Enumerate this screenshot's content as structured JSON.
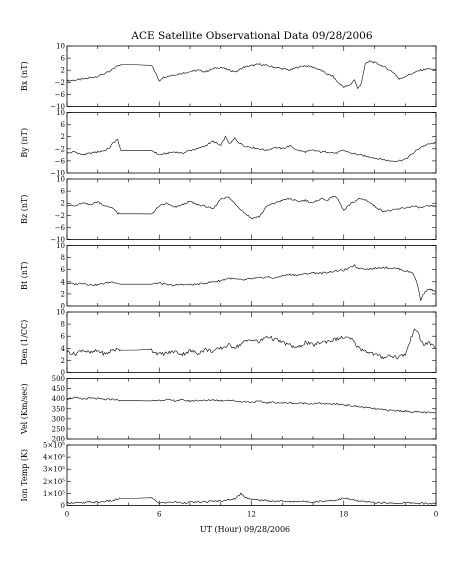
{
  "chart_data": {
    "type": "line",
    "title": "ACE Satellite Observational Data   09/28/2006",
    "xlabel": "UT (Hour)   09/28/2006",
    "x_ticks": [
      "0",
      "6",
      "12",
      "18",
      "0"
    ],
    "xlim": [
      0,
      24
    ],
    "panels": [
      {
        "ylabel": "Bx (nT)",
        "ylim": [
          -10,
          10
        ],
        "y_ticks": [
          {
            "v": 10,
            "t": "10"
          },
          {
            "v": 6,
            "t": "6"
          },
          {
            "v": 2,
            "t": "2"
          },
          {
            "v": -2,
            "t": "−2"
          },
          {
            "v": -6,
            "t": "−6"
          },
          {
            "v": -10,
            "t": "−10"
          }
        ],
        "x": [
          0,
          0.5,
          1,
          1.5,
          2,
          2.5,
          2.8,
          3.0,
          3.3,
          3.5,
          4.5,
          5.5,
          6.0,
          6.2,
          6.5,
          7,
          7.5,
          8,
          8.5,
          9,
          9.5,
          10,
          10.5,
          11,
          11.5,
          12,
          12.5,
          13,
          13.5,
          14,
          14.5,
          15,
          15.5,
          16,
          16.5,
          17,
          17.3,
          17.6,
          18,
          18.4,
          18.7,
          18.9,
          19.1,
          19.4,
          19.7,
          20,
          20.5,
          21,
          21.3,
          21.6,
          22,
          22.5,
          23,
          23.5,
          24
        ],
        "y": [
          -1.5,
          -1.3,
          -1,
          -0.5,
          0,
          1,
          1.5,
          2.5,
          3.5,
          3.8,
          3.8,
          3.8,
          -1.5,
          -0.5,
          0,
          0.5,
          1,
          1.5,
          2,
          1.5,
          2.5,
          3,
          2,
          1.5,
          3,
          3.5,
          4,
          3.5,
          3,
          2.5,
          2,
          3,
          3.5,
          3,
          2,
          0.5,
          0,
          -2,
          -3.5,
          -3,
          -1,
          -4,
          -3,
          4,
          5,
          4.5,
          3.5,
          2,
          1,
          -1,
          0,
          1,
          2,
          2.5,
          2
        ]
      },
      {
        "ylabel": "By (nT)",
        "ylim": [
          -10,
          10
        ],
        "y_ticks": [
          {
            "v": 10,
            "t": "10"
          },
          {
            "v": 6,
            "t": "6"
          },
          {
            "v": 2,
            "t": "2"
          },
          {
            "v": -2,
            "t": "−2"
          },
          {
            "v": -6,
            "t": "−6"
          },
          {
            "v": -10,
            "t": "−10"
          }
        ],
        "x": [
          0,
          0.5,
          1,
          1.5,
          2,
          2.5,
          2.8,
          3.0,
          3.3,
          3.5,
          4.5,
          5.5,
          6.0,
          6.5,
          7,
          7.5,
          8,
          8.5,
          9,
          9.5,
          10,
          10.3,
          10.6,
          10.9,
          11.2,
          11.5,
          12,
          12.5,
          13,
          13.5,
          14,
          14.5,
          15,
          15.5,
          16,
          16.5,
          17,
          17.5,
          18,
          18.5,
          19,
          19.5,
          20,
          20.5,
          21,
          21.5,
          22,
          22.5,
          23,
          23.5,
          24
        ],
        "y": [
          -3.5,
          -3,
          -4,
          -3.5,
          -3,
          -2.5,
          -1.5,
          0,
          1,
          -2.5,
          -2.5,
          -2.5,
          -4,
          -3.5,
          -3,
          -3.5,
          -2.5,
          -2,
          -1,
          0.5,
          -1,
          2,
          -0.5,
          1.5,
          0,
          -1,
          -1.5,
          -2,
          -2.5,
          -1.5,
          -2,
          -1,
          -2.5,
          -3,
          -2.5,
          -3,
          -3,
          -3.5,
          -2.5,
          -3.5,
          -4,
          -4.5,
          -5,
          -5.5,
          -6,
          -6,
          -5.5,
          -3.5,
          -1.5,
          -0.5,
          0
        ]
      },
      {
        "ylabel": "Bz (nT)",
        "ylim": [
          -10,
          10
        ],
        "y_ticks": [
          {
            "v": 10,
            "t": "10"
          },
          {
            "v": 6,
            "t": "6"
          },
          {
            "v": 2,
            "t": "2"
          },
          {
            "v": -2,
            "t": "−2"
          },
          {
            "v": -6,
            "t": "−6"
          },
          {
            "v": -10,
            "t": "−10"
          }
        ],
        "x": [
          0,
          0.5,
          1,
          1.5,
          2,
          2.5,
          3.0,
          3.3,
          3.5,
          4.5,
          5.5,
          6.0,
          6.5,
          7,
          7.5,
          8,
          8.5,
          9,
          9.5,
          10,
          10.5,
          11,
          11.5,
          12,
          12.5,
          13,
          13.5,
          14,
          14.5,
          15,
          15.5,
          16,
          16.5,
          17,
          17.3,
          17.6,
          18,
          18.5,
          19,
          19.5,
          20,
          20.5,
          21,
          21.5,
          22,
          22.5,
          23,
          23.5,
          24
        ],
        "y": [
          1.5,
          1,
          2,
          1.5,
          2.5,
          1,
          0.5,
          -1.5,
          -1.5,
          -1.5,
          -1.5,
          1,
          2,
          0.5,
          1.5,
          2.5,
          1.5,
          1,
          0,
          3.5,
          4,
          1.5,
          -1,
          -3,
          -2.5,
          1,
          2,
          3,
          3.5,
          2.5,
          3,
          2,
          3.5,
          3,
          4.5,
          3.5,
          -0.5,
          2,
          3.5,
          3,
          1,
          -0.5,
          -0.5,
          0,
          0.5,
          1,
          0.5,
          1,
          1
        ]
      },
      {
        "ylabel": "Bt (nT)",
        "ylim": [
          0,
          10
        ],
        "y_ticks": [
          {
            "v": 10,
            "t": "10"
          },
          {
            "v": 8,
            "t": "8"
          },
          {
            "v": 6,
            "t": "6"
          },
          {
            "v": 4,
            "t": "4"
          },
          {
            "v": 2,
            "t": "2"
          },
          {
            "v": 0,
            "t": "0"
          }
        ],
        "x": [
          0,
          0.5,
          1,
          1.5,
          2,
          2.5,
          3.0,
          3.5,
          4.5,
          5.5,
          6.0,
          6.5,
          7,
          7.5,
          8,
          8.5,
          9,
          9.5,
          10,
          10.5,
          11,
          11.5,
          12,
          12.5,
          13,
          13.5,
          14,
          14.5,
          15,
          15.5,
          16,
          16.5,
          17,
          17.5,
          18,
          18.4,
          18.7,
          18.9,
          19.2,
          19.5,
          20,
          20.5,
          21,
          21.5,
          22,
          22.5,
          22.8,
          23,
          23.3,
          23.6,
          24
        ],
        "y": [
          3.8,
          3.6,
          3.8,
          3.5,
          3.5,
          3.8,
          4,
          3.6,
          3.6,
          3.6,
          3.8,
          3.5,
          3.4,
          3.6,
          3.5,
          3.6,
          3.8,
          4,
          4.2,
          4.6,
          4.4,
          4.3,
          4.5,
          4.6,
          4.8,
          4.6,
          5,
          5.2,
          5.1,
          5.3,
          5.5,
          5.4,
          5.6,
          5.8,
          5.9,
          6.3,
          6.8,
          6.2,
          6.3,
          6.1,
          6.2,
          6.4,
          6.3,
          6.2,
          5.8,
          5.5,
          3.5,
          1,
          2.5,
          2.8,
          2.3
        ]
      },
      {
        "ylabel": "Den (1/CC)",
        "ylim": [
          0,
          10
        ],
        "y_ticks": [
          {
            "v": 10,
            "t": "10"
          },
          {
            "v": 8,
            "t": "8"
          },
          {
            "v": 6,
            "t": "6"
          },
          {
            "v": 4,
            "t": "4"
          },
          {
            "v": 2,
            "t": "2"
          },
          {
            "v": 0,
            "t": "0"
          }
        ],
        "x": [
          0,
          0.5,
          1,
          1.5,
          2,
          2.5,
          3.0,
          3.5,
          4.5,
          5.5,
          6.0,
          6.5,
          7,
          7.5,
          8,
          8.5,
          9,
          9.5,
          10,
          10.5,
          11,
          11.5,
          12,
          12.5,
          13,
          13.5,
          14,
          14.5,
          15,
          15.5,
          16,
          16.5,
          17,
          17.5,
          18,
          18.5,
          19,
          19.5,
          20,
          20.5,
          21,
          21.5,
          22,
          22.3,
          22.6,
          22.9,
          23.2,
          23.5,
          24
        ],
        "y": [
          3.5,
          3,
          3.8,
          3.2,
          3.6,
          3,
          3.8,
          3.7,
          3.7,
          3.7,
          3,
          3.2,
          3.5,
          3,
          3.6,
          3.2,
          3.8,
          3.5,
          4,
          4.5,
          4.2,
          5,
          5.5,
          5,
          6,
          5.5,
          5,
          4.5,
          4,
          5,
          4.5,
          5,
          5.2,
          5.5,
          5.8,
          5.5,
          4,
          3.5,
          3,
          2.5,
          2.8,
          2.5,
          3,
          5,
          7.5,
          6,
          4.5,
          5,
          4
        ]
      },
      {
        "ylabel": "Vel (Km/sec)",
        "ylim": [
          200,
          500
        ],
        "y_ticks": [
          {
            "v": 500,
            "t": "500"
          },
          {
            "v": 450,
            "t": "450"
          },
          {
            "v": 400,
            "t": "400"
          },
          {
            "v": 350,
            "t": "350"
          },
          {
            "v": 300,
            "t": "300"
          },
          {
            "v": 250,
            "t": "250"
          },
          {
            "v": 200,
            "t": "200"
          }
        ],
        "x": [
          0,
          0.5,
          1,
          1.5,
          2,
          2.5,
          3.0,
          3.5,
          4.5,
          5.5,
          6.0,
          6.5,
          7,
          7.5,
          8,
          8.5,
          9,
          9.5,
          10,
          10.5,
          11,
          11.5,
          12,
          12.5,
          13,
          13.5,
          14,
          14.5,
          15,
          15.5,
          16,
          16.5,
          17,
          17.5,
          18,
          18.5,
          19,
          19.5,
          20,
          20.5,
          21,
          21.5,
          22,
          22.5,
          23,
          23.5,
          24
        ],
        "y": [
          400,
          405,
          398,
          402,
          400,
          395,
          398,
          390,
          390,
          390,
          392,
          395,
          390,
          393,
          388,
          392,
          390,
          395,
          390,
          393,
          388,
          385,
          383,
          386,
          380,
          382,
          378,
          380,
          376,
          378,
          375,
          377,
          372,
          374,
          370,
          365,
          360,
          355,
          350,
          345,
          342,
          340,
          338,
          335,
          333,
          330,
          330
        ]
      },
      {
        "ylabel": "Ion Temp (K)",
        "ylim": [
          0,
          500000
        ],
        "y_ticks": [
          {
            "v": 500000,
            "t": "5×10⁵"
          },
          {
            "v": 400000,
            "t": "4×10⁵"
          },
          {
            "v": 300000,
            "t": "3×10⁵"
          },
          {
            "v": 200000,
            "t": "2×10⁵"
          },
          {
            "v": 100000,
            "t": "1×10⁵"
          },
          {
            "v": 0,
            "t": "0"
          }
        ],
        "x": [
          0,
          0.5,
          1,
          1.5,
          2,
          2.5,
          3.0,
          3.5,
          4.5,
          5.5,
          6.0,
          6.5,
          7,
          7.5,
          8,
          8.5,
          9,
          9.5,
          10,
          10.5,
          11,
          11.3,
          11.6,
          12,
          12.5,
          13,
          13.5,
          14,
          14.5,
          15,
          15.5,
          16,
          16.5,
          17,
          17.5,
          18,
          18.5,
          19,
          19.5,
          20,
          20.5,
          21,
          21.5,
          22,
          22.5,
          23,
          23.5,
          24
        ],
        "y": [
          20000,
          25000,
          18000,
          30000,
          25000,
          35000,
          40000,
          60000,
          60000,
          60000,
          20000,
          25000,
          30000,
          22000,
          28000,
          25000,
          30000,
          35000,
          40000,
          45000,
          60000,
          100000,
          70000,
          50000,
          45000,
          40000,
          35000,
          38000,
          30000,
          35000,
          32000,
          30000,
          35000,
          40000,
          45000,
          60000,
          50000,
          35000,
          30000,
          25000,
          22000,
          20000,
          18000,
          20000,
          22000,
          18000,
          15000,
          20000
        ]
      }
    ]
  }
}
